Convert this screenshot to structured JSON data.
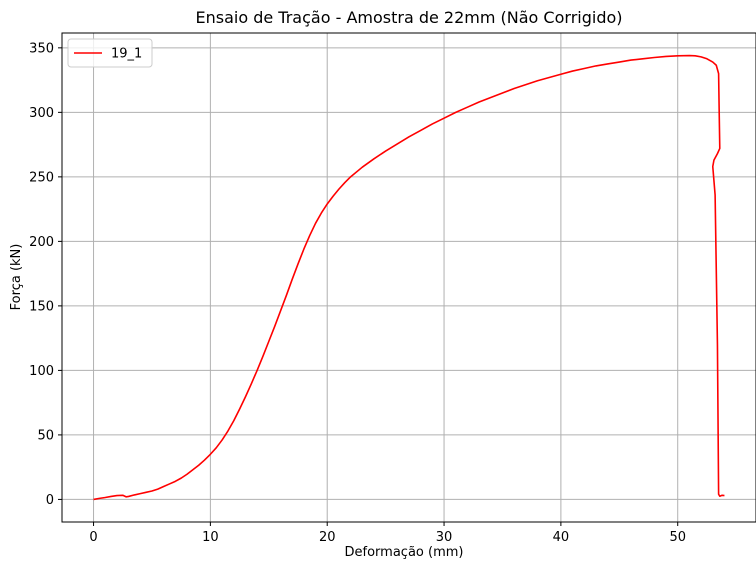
{
  "chart_data": {
    "type": "line",
    "title": "Ensaio de Tração - Amostra de 22mm (Não Corrigido)",
    "xlabel": "Deformação (mm)",
    "ylabel": "Força (kN)",
    "xlim": [
      -2.7,
      56.7
    ],
    "ylim": [
      -17.5,
      361.5
    ],
    "xticks": [
      0,
      10,
      20,
      30,
      40,
      50
    ],
    "yticks": [
      0,
      50,
      100,
      150,
      200,
      250,
      300,
      350
    ],
    "grid": true,
    "legend_position": "top-left",
    "series": [
      {
        "name": "19_1",
        "color": "#ff0000",
        "points": [
          [
            0,
            0
          ],
          [
            0.5,
            0.8
          ],
          [
            1,
            1.5
          ],
          [
            1.5,
            2.3
          ],
          [
            2,
            3
          ],
          [
            2.5,
            3.2
          ],
          [
            2.8,
            2
          ],
          [
            3,
            2.3
          ],
          [
            3.5,
            3.5
          ],
          [
            4,
            4.5
          ],
          [
            4.5,
            5.5
          ],
          [
            5,
            6.5
          ],
          [
            5.5,
            8
          ],
          [
            6,
            10
          ],
          [
            6.5,
            12
          ],
          [
            7,
            14
          ],
          [
            7.5,
            16.5
          ],
          [
            8,
            19.5
          ],
          [
            8.5,
            23
          ],
          [
            9,
            26.5
          ],
          [
            9.5,
            30.5
          ],
          [
            10,
            35
          ],
          [
            10.5,
            40
          ],
          [
            11,
            46
          ],
          [
            11.5,
            53
          ],
          [
            12,
            61
          ],
          [
            12.5,
            70
          ],
          [
            13,
            79.5
          ],
          [
            13.5,
            89.5
          ],
          [
            14,
            100
          ],
          [
            14.5,
            111
          ],
          [
            15,
            122.5
          ],
          [
            15.5,
            134
          ],
          [
            16,
            146
          ],
          [
            16.5,
            158
          ],
          [
            17,
            170.5
          ],
          [
            17.5,
            182.5
          ],
          [
            18,
            194
          ],
          [
            18.5,
            204.5
          ],
          [
            19,
            214
          ],
          [
            19.5,
            222
          ],
          [
            20,
            229
          ],
          [
            20.5,
            235
          ],
          [
            21,
            240.5
          ],
          [
            21.5,
            245.5
          ],
          [
            22,
            250
          ],
          [
            23,
            257.5
          ],
          [
            24,
            264
          ],
          [
            25,
            270
          ],
          [
            26,
            275.5
          ],
          [
            27,
            281
          ],
          [
            28,
            286
          ],
          [
            29,
            291
          ],
          [
            30,
            295.5
          ],
          [
            31,
            300
          ],
          [
            32,
            304
          ],
          [
            33,
            308
          ],
          [
            34,
            311.5
          ],
          [
            35,
            315
          ],
          [
            36,
            318.5
          ],
          [
            37,
            321.5
          ],
          [
            38,
            324.5
          ],
          [
            39,
            327
          ],
          [
            40,
            329.5
          ],
          [
            41,
            332
          ],
          [
            42,
            334
          ],
          [
            43,
            336
          ],
          [
            44,
            337.5
          ],
          [
            45,
            339
          ],
          [
            46,
            340.5
          ],
          [
            47,
            341.5
          ],
          [
            48,
            342.5
          ],
          [
            49,
            343.3
          ],
          [
            50,
            343.8
          ],
          [
            51,
            344
          ],
          [
            51.5,
            343.8
          ],
          [
            52,
            343
          ],
          [
            52.5,
            341.5
          ],
          [
            53,
            339
          ],
          [
            53.3,
            336.5
          ],
          [
            53.5,
            330
          ],
          [
            53.55,
            300
          ],
          [
            53.6,
            272
          ],
          [
            53.4,
            268
          ],
          [
            53.1,
            263
          ],
          [
            53,
            258
          ],
          [
            53.2,
            236
          ],
          [
            53.4,
            120
          ],
          [
            53.5,
            4
          ],
          [
            53.6,
            2.5
          ],
          [
            53.8,
            3.2
          ],
          [
            54,
            3
          ]
        ]
      }
    ]
  }
}
